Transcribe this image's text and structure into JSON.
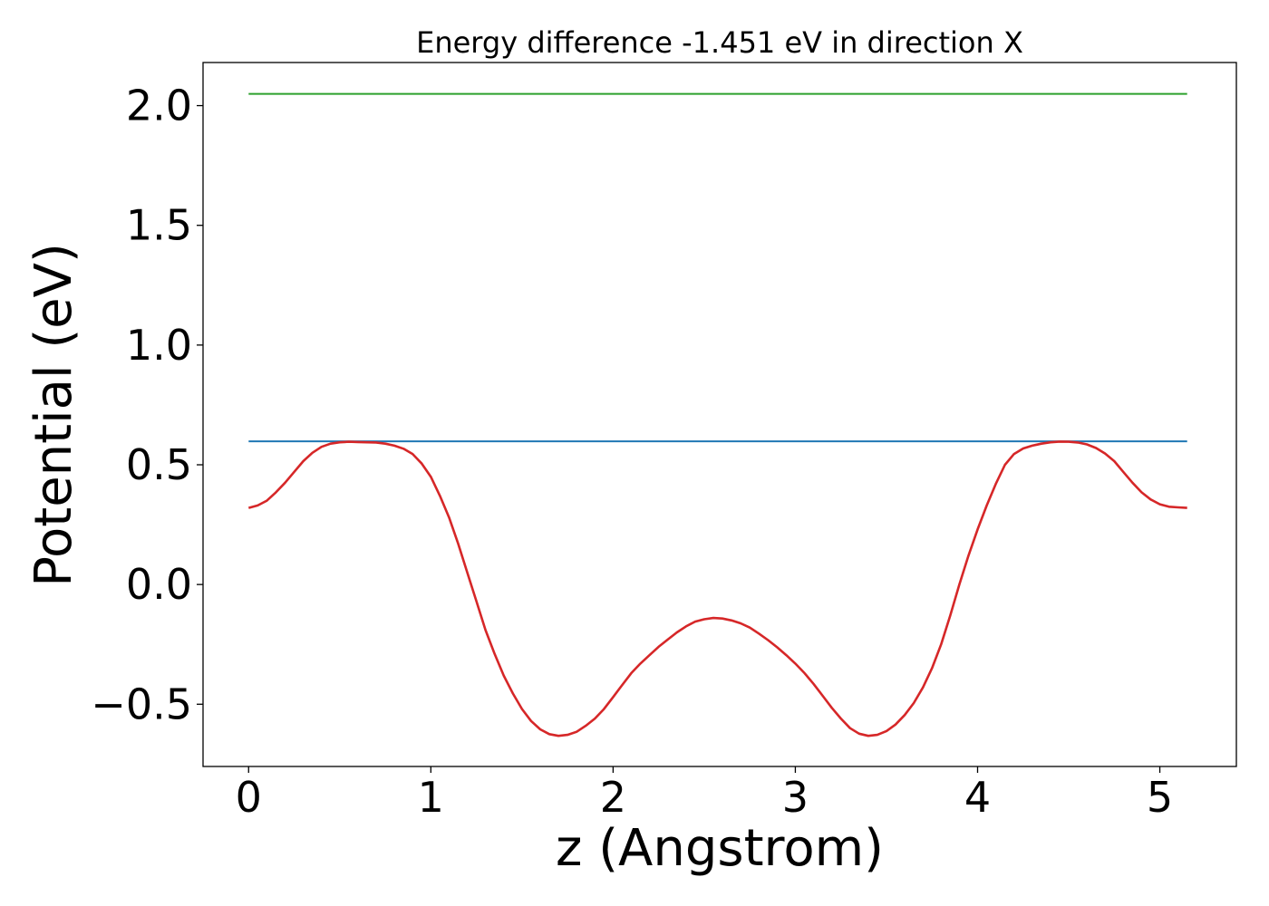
{
  "chart_data": {
    "type": "line",
    "title": "Energy difference -1.451 eV in direction X",
    "xlabel": "z (Angstrom)",
    "ylabel": "Potential (eV)",
    "xlim": [
      -0.25,
      5.42
    ],
    "ylim": [
      -0.76,
      2.18
    ],
    "xticks": [
      0,
      1,
      2,
      3,
      4,
      5
    ],
    "xtick_labels": [
      "0",
      "1",
      "2",
      "3",
      "4",
      "5"
    ],
    "yticks": [
      -0.5,
      0.0,
      0.5,
      1.0,
      1.5,
      2.0
    ],
    "ytick_labels": [
      "−0.5",
      "0.0",
      "0.5",
      "1.0",
      "1.5",
      "2.0"
    ],
    "grid": false,
    "series": [
      {
        "color": "#2ca02c",
        "x": [
          0,
          5.15
        ],
        "y": [
          2.049,
          2.049
        ]
      },
      {
        "color": "#1f77b4",
        "x": [
          0,
          5.15
        ],
        "y": [
          0.598,
          0.598
        ]
      },
      {
        "color": "#d62728",
        "x": [
          0,
          0.05,
          0.1,
          0.15,
          0.2,
          0.25,
          0.3,
          0.35,
          0.4,
          0.45,
          0.5,
          0.55,
          0.6,
          0.65,
          0.7,
          0.75,
          0.8,
          0.85,
          0.9,
          0.95,
          1.0,
          1.05,
          1.1,
          1.15,
          1.2,
          1.25,
          1.3,
          1.35,
          1.4,
          1.45,
          1.5,
          1.55,
          1.6,
          1.65,
          1.7,
          1.75,
          1.8,
          1.85,
          1.9,
          1.95,
          2.0,
          2.05,
          2.1,
          2.15,
          2.2,
          2.25,
          2.3,
          2.35,
          2.4,
          2.45,
          2.5,
          2.55,
          2.6,
          2.65,
          2.7,
          2.75,
          2.8,
          2.85,
          2.9,
          2.95,
          3.0,
          3.05,
          3.1,
          3.15,
          3.2,
          3.25,
          3.3,
          3.35,
          3.4,
          3.45,
          3.5,
          3.55,
          3.6,
          3.65,
          3.7,
          3.75,
          3.8,
          3.85,
          3.9,
          3.95,
          4.0,
          4.05,
          4.1,
          4.15,
          4.2,
          4.25,
          4.3,
          4.35,
          4.4,
          4.45,
          4.5,
          4.55,
          4.6,
          4.65,
          4.7,
          4.75,
          4.8,
          4.85,
          4.9,
          4.95,
          5.0,
          5.05,
          5.1,
          5.15
        ],
        "y": [
          0.32,
          0.33,
          0.35,
          0.385,
          0.425,
          0.47,
          0.515,
          0.55,
          0.575,
          0.588,
          0.594,
          0.596,
          0.595,
          0.594,
          0.593,
          0.588,
          0.58,
          0.567,
          0.545,
          0.505,
          0.45,
          0.37,
          0.28,
          0.17,
          0.05,
          -0.07,
          -0.19,
          -0.29,
          -0.38,
          -0.455,
          -0.52,
          -0.57,
          -0.605,
          -0.625,
          -0.632,
          -0.628,
          -0.615,
          -0.59,
          -0.56,
          -0.52,
          -0.47,
          -0.42,
          -0.37,
          -0.33,
          -0.295,
          -0.26,
          -0.23,
          -0.2,
          -0.175,
          -0.155,
          -0.145,
          -0.14,
          -0.142,
          -0.15,
          -0.162,
          -0.18,
          -0.205,
          -0.232,
          -0.262,
          -0.295,
          -0.33,
          -0.37,
          -0.415,
          -0.465,
          -0.515,
          -0.56,
          -0.6,
          -0.623,
          -0.632,
          -0.628,
          -0.612,
          -0.585,
          -0.545,
          -0.495,
          -0.43,
          -0.35,
          -0.25,
          -0.13,
          0.0,
          0.12,
          0.23,
          0.33,
          0.42,
          0.5,
          0.545,
          0.568,
          0.58,
          0.588,
          0.594,
          0.597,
          0.596,
          0.593,
          0.585,
          0.57,
          0.547,
          0.515,
          0.47,
          0.425,
          0.385,
          0.355,
          0.335,
          0.325,
          0.322,
          0.32
        ]
      }
    ]
  }
}
